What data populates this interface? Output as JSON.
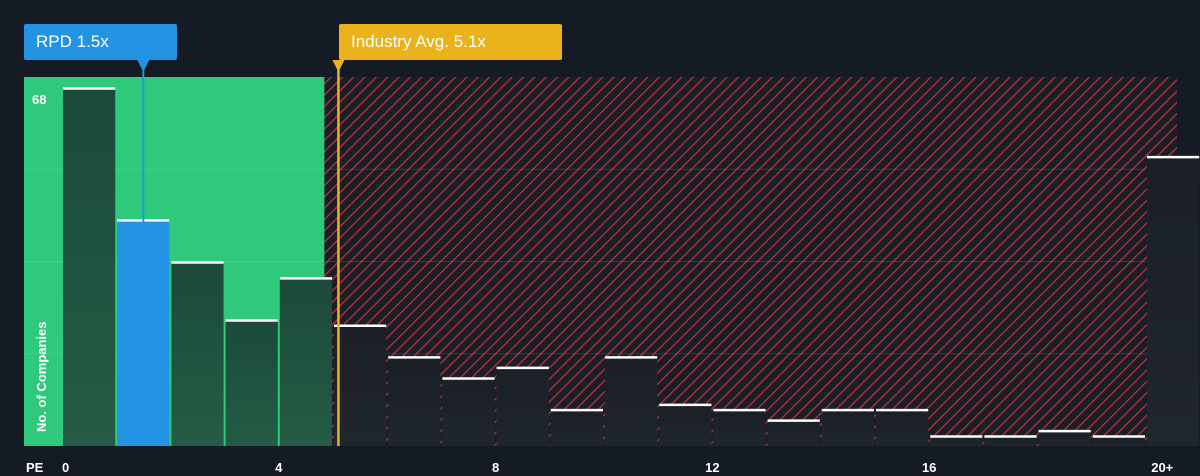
{
  "chart_data": {
    "type": "bar",
    "x_label": "PE",
    "y_label": "No. of Companies",
    "x_ticks": [
      "0",
      "4",
      "8",
      "12",
      "16",
      "20+"
    ],
    "y_max_label": "68",
    "ylim": [
      0,
      70
    ],
    "bins": [
      {
        "x": 0.5,
        "value": 68
      },
      {
        "x": 1.5,
        "value": 43
      },
      {
        "x": 2.5,
        "value": 35
      },
      {
        "x": 3.5,
        "value": 24
      },
      {
        "x": 4.5,
        "value": 32
      },
      {
        "x": 5.5,
        "value": 23
      },
      {
        "x": 6.5,
        "value": 17
      },
      {
        "x": 7.5,
        "value": 13
      },
      {
        "x": 8.5,
        "value": 15
      },
      {
        "x": 9.5,
        "value": 7
      },
      {
        "x": 10.5,
        "value": 17
      },
      {
        "x": 11.5,
        "value": 8
      },
      {
        "x": 12.5,
        "value": 7
      },
      {
        "x": 13.5,
        "value": 5
      },
      {
        "x": 14.5,
        "value": 7
      },
      {
        "x": 15.5,
        "value": 7
      },
      {
        "x": 16.5,
        "value": 2
      },
      {
        "x": 17.5,
        "value": 2
      },
      {
        "x": 18.5,
        "value": 3
      },
      {
        "x": 19.5,
        "value": 2
      },
      {
        "x": 20.5,
        "value": 55
      }
    ],
    "company": {
      "label": "RPD 1.5x",
      "value": 1.5,
      "highlight_bin": 1
    },
    "industry": {
      "label": "Industry Avg. 5.1x",
      "value": 5.1
    },
    "colors": {
      "background": "#151b24",
      "fair_zone": "#2ec97b",
      "over_zone_hatch": "#c8323c",
      "bar": "#1d4a3a",
      "bar_over": "#1b2027",
      "highlight": "#2394e3",
      "industry": "#eab31b",
      "cap": "#ffffff"
    }
  }
}
